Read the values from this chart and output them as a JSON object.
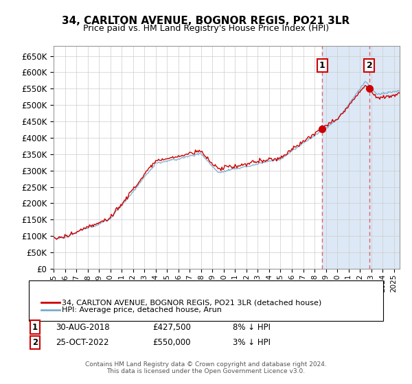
{
  "title": "34, CARLTON AVENUE, BOGNOR REGIS, PO21 3LR",
  "subtitle": "Price paid vs. HM Land Registry's House Price Index (HPI)",
  "ylabel_ticks": [
    0,
    50000,
    100000,
    150000,
    200000,
    250000,
    300000,
    350000,
    400000,
    450000,
    500000,
    550000,
    600000,
    650000
  ],
  "ylim": [
    0,
    680000
  ],
  "xlim_start": 1995.0,
  "xlim_end": 2025.5,
  "sale1_year": 2018.667,
  "sale1_price": 427500,
  "sale2_year": 2022.833,
  "sale2_price": 550000,
  "legend_line1": "34, CARLTON AVENUE, BOGNOR REGIS, PO21 3LR (detached house)",
  "legend_line2": "HPI: Average price, detached house, Arun",
  "annotation1_num": "1",
  "annotation1_date": "30-AUG-2018",
  "annotation1_price": "£427,500",
  "annotation1_hpi": "8% ↓ HPI",
  "annotation2_num": "2",
  "annotation2_date": "25-OCT-2022",
  "annotation2_price": "£550,000",
  "annotation2_hpi": "3% ↓ HPI",
  "footer": "Contains HM Land Registry data © Crown copyright and database right 2024.\nThis data is licensed under the Open Government Licence v3.0.",
  "red_color": "#cc0000",
  "blue_color": "#7aabcf",
  "background_shade": "#dce8f5",
  "grid_color": "#cccccc"
}
